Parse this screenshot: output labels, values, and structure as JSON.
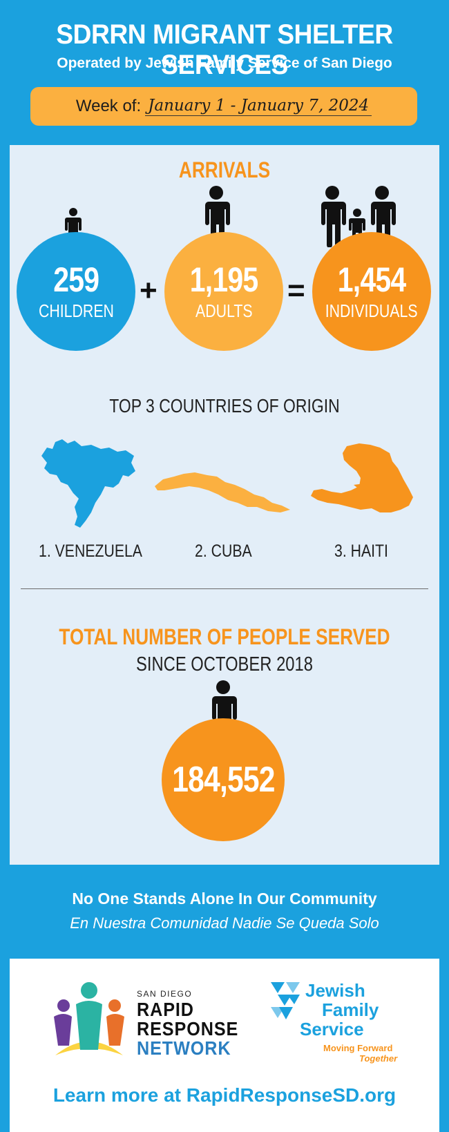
{
  "header": {
    "title": "SDRRN MIGRANT SHELTER SERVICES",
    "subtitle": "Operated by Jewish Family Service of San Diego",
    "week_label": "Week of:",
    "week_range": "January 1 - January 7, 2024"
  },
  "arrivals": {
    "title": "ARRIVALS",
    "children": {
      "value": "259",
      "label": "CHILDREN"
    },
    "plus": "+",
    "adults": {
      "value": "1,195",
      "label": "ADULTS"
    },
    "equals": "=",
    "individuals": {
      "value": "1,454",
      "label": "INDIVIDUALS"
    }
  },
  "countries": {
    "title": "TOP 3 COUNTRIES OF ORIGIN",
    "items": [
      {
        "label": "1. VENEZUELA",
        "color": "#1ba1de"
      },
      {
        "label": "2. CUBA",
        "color": "#fbb040"
      },
      {
        "label": "3. HAITI",
        "color": "#f7941d"
      }
    ]
  },
  "total": {
    "title": "TOTAL NUMBER OF PEOPLE SERVED",
    "since": "SINCE OCTOBER 2018",
    "value": "184,552"
  },
  "tagline": {
    "english": "No One Stands Alone In Our Community",
    "spanish": "En Nuestra Comunidad Nadie Se Queda Solo"
  },
  "logos": {
    "rrn": {
      "small": "SAN DIEGO",
      "line1": "RAPID",
      "line2": "RESPONSE",
      "line3": "NETWORK"
    },
    "jfs": {
      "line1": "Jewish",
      "line2": "Family",
      "line3": "Service",
      "tag1": "Moving Forward",
      "tag2": "Together"
    }
  },
  "footer": {
    "learn_more": "Learn more at RapidResponseSD.org"
  },
  "colors": {
    "background": "#1ba1de",
    "panel": "#e3eef8",
    "orange": "#f7941d",
    "yellow": "#fbb040",
    "blue": "#1ba1de"
  }
}
